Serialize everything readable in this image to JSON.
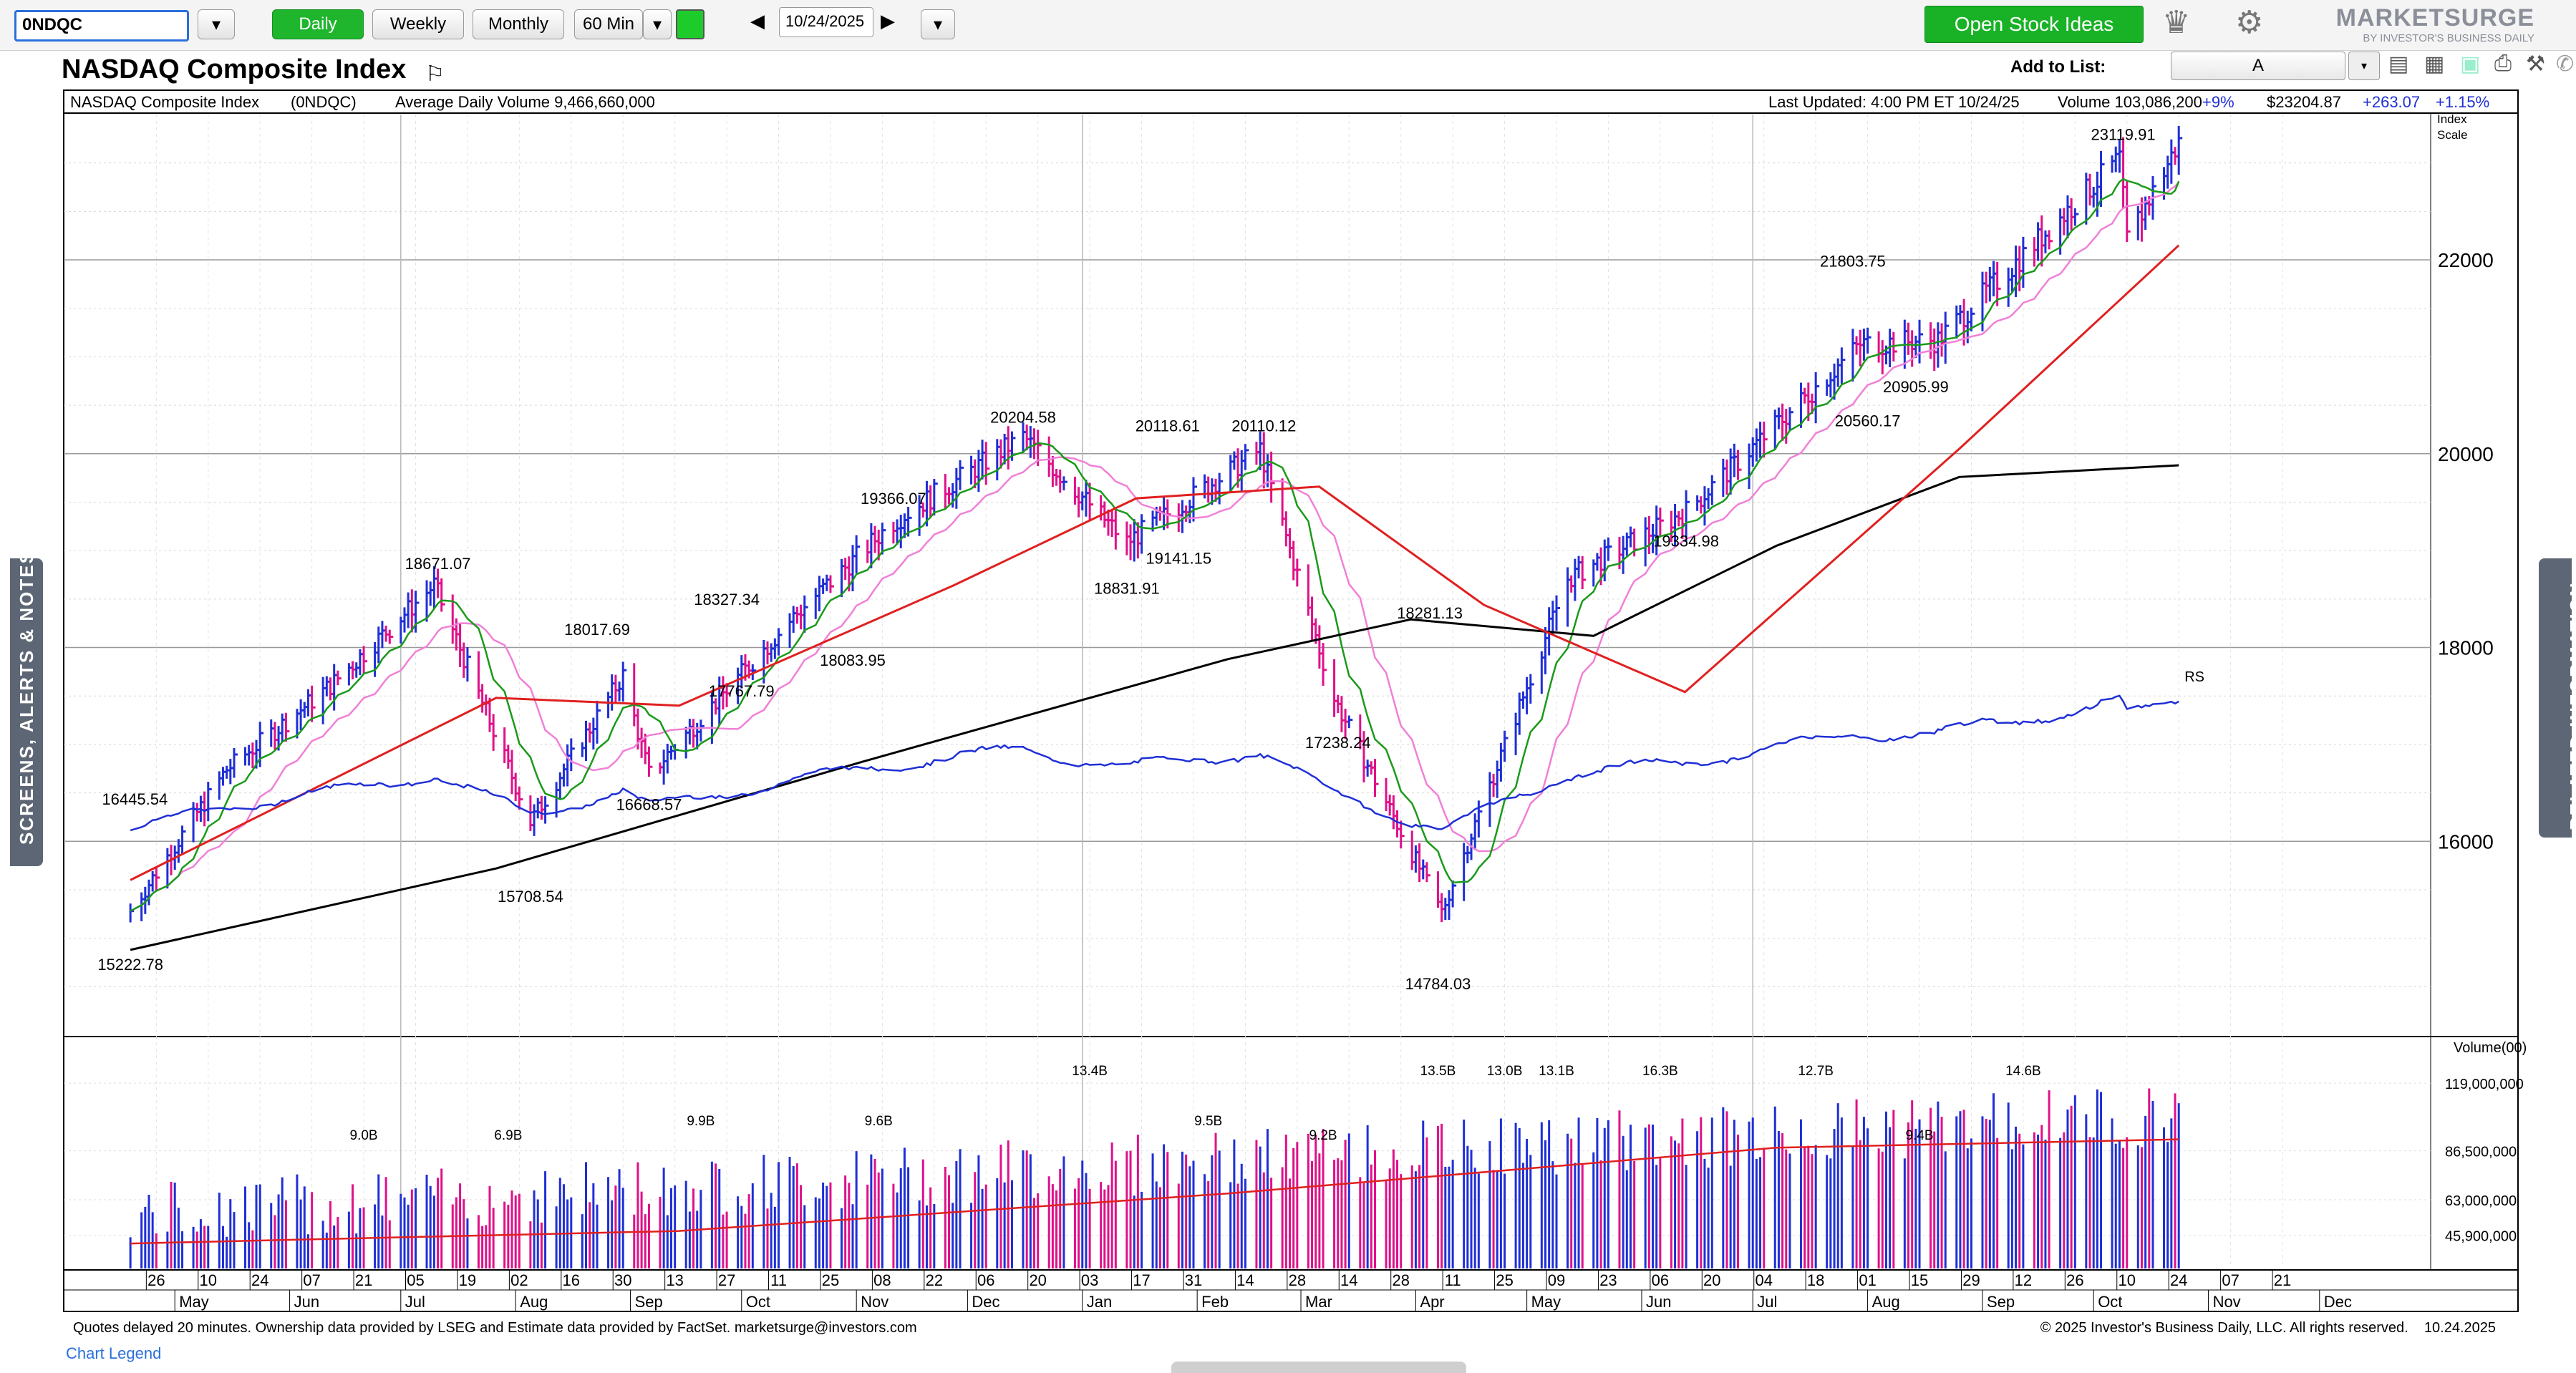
{
  "toolbar": {
    "symbol": "0NDQC",
    "periods": [
      "Daily",
      "Weekly",
      "Monthly"
    ],
    "active_period": "Daily",
    "interval": "60 Min",
    "date": "10/24/2025",
    "open_ideas": "Open Stock Ideas",
    "brand": "MARKETSURGE",
    "brand_sub": "BY INVESTOR'S BUSINESS DAILY"
  },
  "header": {
    "title": "NASDAQ Composite Index",
    "add_to_list_label": "Add to List:",
    "add_to_list_value": "A"
  },
  "info": {
    "name": "NASDAQ Composite Index",
    "symbol": "(0NDQC)",
    "avg_volume": "Average Daily Volume 9,466,660,000",
    "last_updated": "Last Updated: 4:00 PM ET 10/24/25",
    "volume": "Volume 103,086,200",
    "volume_pct": "+9%",
    "price": "$23204.87",
    "change": "+263.07",
    "change_pct": "+1.15%",
    "scale_label_1": "Index",
    "scale_label_2": "Scale"
  },
  "side": {
    "left": "SCREENS, ALERTS & NOTES",
    "right": "RELATED INFORMATION"
  },
  "footer": {
    "notice": "Quotes delayed 20 minutes. Ownership data provided by LSEG and Estimate data provided by FactSet. marketsurge@investors.com",
    "copyright": "© 2025 Investor's Business Daily, LLC. All rights reserved.",
    "date": "10.24.2025",
    "legend_link": "Chart Legend"
  },
  "colors": {
    "up": "#1f2fd6",
    "down": "#e0108a",
    "ma200": "#000000",
    "ma50": "#e02020",
    "ma21": "#f080d8",
    "ma10": "#1a9a1a",
    "rs": "#1f2fd6"
  },
  "chart_data": [
    {
      "type": "line",
      "title": "NASDAQ Composite Index",
      "ylim": [
        14000,
        23500
      ],
      "yticks": [
        16000,
        18000,
        20000,
        22000
      ],
      "grid": true,
      "series_labels": [
        "RS"
      ],
      "anchor_points": [
        {
          "date": "2024-04-19",
          "close": 15282.01
        },
        {
          "date": "2024-05-15",
          "close": 16742.39
        },
        {
          "date": "2024-06-12",
          "close": 17608.44
        },
        {
          "date": "2024-07-10",
          "close": 18647.45
        },
        {
          "date": "2024-08-05",
          "close": 16200.08
        },
        {
          "date": "2024-08-30",
          "close": 17713.62
        },
        {
          "date": "2024-09-06",
          "close": 16690.83
        },
        {
          "date": "2024-10-15",
          "close": 18315.59
        },
        {
          "date": "2024-11-11",
          "close": 19298.76
        },
        {
          "date": "2024-12-16",
          "close": 20173.89
        },
        {
          "date": "2025-01-13",
          "close": 19088.1
        },
        {
          "date": "2025-02-18",
          "close": 20041.26
        },
        {
          "date": "2025-03-10",
          "close": 17468.32
        },
        {
          "date": "2025-04-08",
          "close": 15267.91
        },
        {
          "date": "2025-05-12",
          "close": 18708.34
        },
        {
          "date": "2025-06-13",
          "close": 19406.83
        },
        {
          "date": "2025-07-30",
          "close": 21129.67
        },
        {
          "date": "2025-08-20",
          "close": 21172.86
        },
        {
          "date": "2025-10-08",
          "close": 23043.38
        },
        {
          "date": "2025-10-10",
          "close": 22204.43
        },
        {
          "date": "2025-10-24",
          "close": 23204.87
        }
      ],
      "moving_averages": [
        {
          "name": "200-day",
          "points": [
            [
              0,
              14880
            ],
            [
              20,
              15720
            ],
            [
              40,
              16820
            ],
            [
              60,
              17880
            ],
            [
              70,
              18290
            ],
            [
              80,
              18120
            ],
            [
              90,
              19050
            ],
            [
              100,
              19760
            ],
            [
              112,
              19880
            ]
          ]
        },
        {
          "name": "50-day",
          "points": [
            [
              0,
              15600
            ],
            [
              20,
              17480
            ],
            [
              30,
              17400
            ],
            [
              45,
              18640
            ],
            [
              55,
              19540
            ],
            [
              65,
              19660
            ],
            [
              74,
              18440
            ],
            [
              85,
              17540
            ],
            [
              100,
              20050
            ],
            [
              112,
              22150
            ]
          ]
        }
      ],
      "annotations": [
        {
          "label": "15222.78",
          "date": "2024-04-19",
          "value": 14850,
          "pos": "below"
        },
        {
          "label": "16445.54",
          "date": "2024-05-01",
          "value": 16380,
          "pos": "left"
        },
        {
          "label": "18671.07",
          "date": "2024-07-11",
          "value": 18780,
          "pos": "above"
        },
        {
          "label": "15708.54",
          "date": "2024-08-05",
          "value": 15550,
          "pos": "below"
        },
        {
          "label": "18017.69",
          "date": "2024-08-23",
          "value": 18100,
          "pos": "above"
        },
        {
          "label": "16668.57",
          "date": "2024-09-06",
          "value": 16500,
          "pos": "below"
        },
        {
          "label": "18327.34",
          "date": "2024-09-27",
          "value": 18410,
          "pos": "above"
        },
        {
          "label": "17767.79",
          "date": "2024-10-01",
          "value": 17670,
          "pos": "below"
        },
        {
          "label": "18083.95",
          "date": "2024-10-31",
          "value": 17990,
          "pos": "below"
        },
        {
          "label": "19366.07",
          "date": "2024-11-11",
          "value": 19450,
          "pos": "above"
        },
        {
          "label": "20204.58",
          "date": "2024-12-16",
          "value": 20290,
          "pos": "above"
        },
        {
          "label": "18831.91",
          "date": "2025-01-13",
          "value": 18730,
          "pos": "below"
        },
        {
          "label": "20118.61",
          "date": "2025-01-24",
          "value": 20200,
          "pos": "above"
        },
        {
          "label": "19141.15",
          "date": "2025-01-27",
          "value": 19040,
          "pos": "below"
        },
        {
          "label": "20110.12",
          "date": "2025-02-19",
          "value": 20200,
          "pos": "above"
        },
        {
          "label": "18281.13",
          "date": "2025-03-25",
          "value": 18300,
          "pos": "right"
        },
        {
          "label": "17238.24",
          "date": "2025-03-11",
          "value": 17140,
          "pos": "below"
        },
        {
          "label": "14784.03",
          "date": "2025-04-07",
          "value": 14650,
          "pos": "below"
        },
        {
          "label": "19334.98",
          "date": "2025-06-13",
          "value": 19220,
          "pos": "below"
        },
        {
          "label": "21803.75",
          "date": "2025-07-28",
          "value": 21900,
          "pos": "above"
        },
        {
          "label": "20560.17",
          "date": "2025-08-01",
          "value": 20460,
          "pos": "below"
        },
        {
          "label": "20905.99",
          "date": "2025-08-14",
          "value": 20810,
          "pos": "below"
        },
        {
          "label": "23119.91",
          "date": "2025-10-09",
          "value": 23210,
          "pos": "above"
        }
      ],
      "x_tick_labels": [
        "26",
        "10",
        "24",
        "07",
        "21",
        "05",
        "19",
        "02",
        "16",
        "30",
        "13",
        "27",
        "11",
        "25",
        "08",
        "22",
        "06",
        "20",
        "03",
        "17",
        "31",
        "14",
        "28",
        "14",
        "28",
        "11",
        "25",
        "09",
        "23",
        "06",
        "20",
        "04",
        "18",
        "01",
        "15",
        "29",
        "12",
        "26",
        "10",
        "24",
        "07",
        "21"
      ],
      "month_labels": [
        "May",
        "Jun",
        "Jul",
        "Aug",
        "Sep",
        "Oct",
        "Nov",
        "Dec",
        "Jan",
        "Feb",
        "Mar",
        "Apr",
        "May",
        "Jun",
        "Jul",
        "Aug",
        "Sep",
        "Oct",
        "Nov",
        "Dec"
      ]
    },
    {
      "type": "bar",
      "title": "Volume(00)",
      "yticks": [
        45900000,
        63000000,
        86500000,
        119000000
      ],
      "ytick_labels": [
        "45,900,000",
        "63,000,000",
        "86,500,000",
        "119,000,000"
      ],
      "ylim": [
        30000000,
        140000000
      ],
      "avg_line": [
        [
          0,
          42000000
        ],
        [
          30,
          48000000
        ],
        [
          60,
          66000000
        ],
        [
          90,
          88000000
        ],
        [
          112,
          92000000
        ]
      ],
      "annotations": [
        {
          "label": "9.0B",
          "date": "2024-06-21"
        },
        {
          "label": "6.9B",
          "date": "2024-07-30"
        },
        {
          "label": "9.9B",
          "date": "2024-09-20"
        },
        {
          "label": "9.6B",
          "date": "2024-11-07"
        },
        {
          "label": "13.4B",
          "date": "2025-01-03"
        },
        {
          "label": "9.5B",
          "date": "2025-02-04"
        },
        {
          "label": "9.2B",
          "date": "2025-03-07"
        },
        {
          "label": "13.5B",
          "date": "2025-04-07"
        },
        {
          "label": "13.0B",
          "date": "2025-04-25"
        },
        {
          "label": "13.1B",
          "date": "2025-05-09"
        },
        {
          "label": "16.3B",
          "date": "2025-06-06"
        },
        {
          "label": "12.7B",
          "date": "2025-07-18"
        },
        {
          "label": "9.4B",
          "date": "2025-08-15"
        },
        {
          "label": "14.6B",
          "date": "2025-09-12"
        }
      ]
    }
  ]
}
